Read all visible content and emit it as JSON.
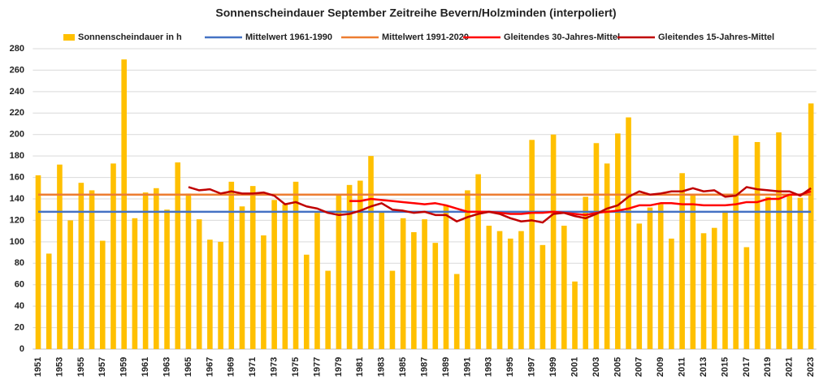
{
  "chart_data": {
    "type": "bar",
    "title": "Sonnenscheindauer September Zeitreihe Bevern/Holzminden (interpoliert)",
    "categories": [
      "1951",
      null,
      "1953",
      null,
      "1955",
      null,
      "1957",
      null,
      "1959",
      null,
      "1961",
      null,
      "1963",
      null,
      "1965",
      null,
      "1967",
      null,
      "1969",
      null,
      "1971",
      null,
      "1973",
      null,
      "1975",
      null,
      "1977",
      null,
      "1979",
      null,
      "1981",
      null,
      "1983",
      null,
      "1985",
      null,
      "1987",
      null,
      "1989",
      null,
      "1991",
      null,
      "1993",
      null,
      "1995",
      null,
      "1997",
      null,
      "1999",
      null,
      "2001",
      null,
      "2003",
      null,
      "2005",
      null,
      "2007",
      null,
      "2009",
      null,
      "2011",
      null,
      "2013",
      null,
      "2015",
      null,
      "2017",
      null,
      "2019",
      null,
      "2021",
      null,
      "2023"
    ],
    "series": [
      {
        "name": "Sonnenscheindauer in h",
        "type": "bar",
        "color": "#ffc000",
        "values": [
          162,
          89,
          172,
          120,
          155,
          148,
          101,
          173,
          270,
          122,
          146,
          150,
          130,
          174,
          145,
          121,
          102,
          100,
          156,
          133,
          152,
          106,
          139,
          135,
          156,
          88,
          127,
          73,
          144,
          153,
          157,
          180,
          128,
          73,
          122,
          109,
          121,
          99,
          134,
          70,
          148,
          163,
          115,
          110,
          103,
          110,
          195,
          97,
          200,
          115,
          63,
          142,
          192,
          173,
          201,
          216,
          117,
          132,
          135,
          103,
          164,
          144,
          108,
          113,
          129,
          199,
          95,
          193,
          142,
          202,
          144,
          141,
          229
        ]
      },
      {
        "name": "Mittelwert 1961-1990",
        "type": "line",
        "color": "#4472c4",
        "values": [
          128,
          128,
          128,
          128,
          128,
          128,
          128,
          128,
          128,
          128,
          128,
          128,
          128,
          128,
          128,
          128,
          128,
          128,
          128,
          128,
          128,
          128,
          128,
          128,
          128,
          128,
          128,
          128,
          128,
          128,
          128,
          128,
          128,
          128,
          128,
          128,
          128,
          128,
          128,
          128,
          128,
          128,
          128,
          128,
          128,
          128,
          128,
          128,
          128,
          128,
          128,
          128,
          128,
          128,
          128,
          128,
          128,
          128,
          128,
          128,
          128,
          128,
          128,
          128,
          128,
          128,
          128,
          128,
          128,
          128,
          128,
          128,
          128
        ]
      },
      {
        "name": "Mittelwert 1991-2020",
        "type": "line",
        "color": "#ed7d31",
        "values": [
          144,
          144,
          144,
          144,
          144,
          144,
          144,
          144,
          144,
          144,
          144,
          144,
          144,
          144,
          144,
          144,
          144,
          144,
          144,
          144,
          144,
          144,
          144,
          144,
          144,
          144,
          144,
          144,
          144,
          144,
          144,
          144,
          144,
          144,
          144,
          144,
          144,
          144,
          144,
          144,
          144,
          144,
          144,
          144,
          144,
          144,
          144,
          144,
          144,
          144,
          144,
          144,
          144,
          144,
          144,
          144,
          144,
          144,
          144,
          144,
          144,
          144,
          144,
          144,
          144,
          144,
          144,
          144,
          144,
          144,
          144,
          144,
          144
        ]
      },
      {
        "name": "Gleitendes 30-Jahres-Mittel",
        "type": "line",
        "color": "#ff0000",
        "values": [
          null,
          null,
          null,
          null,
          null,
          null,
          null,
          null,
          null,
          null,
          null,
          null,
          null,
          null,
          null,
          null,
          null,
          null,
          null,
          null,
          null,
          null,
          null,
          null,
          null,
          null,
          null,
          null,
          null,
          138,
          138,
          140,
          139,
          138,
          137,
          136,
          135,
          136,
          134,
          131,
          128,
          128,
          128,
          127,
          126,
          126,
          127,
          127,
          128,
          127,
          126,
          125,
          127,
          128,
          129,
          131,
          134,
          134,
          136,
          136,
          135,
          135,
          134,
          134,
          134,
          135,
          137,
          137,
          140,
          140,
          144,
          144,
          147
        ]
      },
      {
        "name": "Gleitendes 15-Jahres-Mittel",
        "type": "line",
        "color": "#c00000",
        "values": [
          null,
          null,
          null,
          null,
          null,
          null,
          null,
          null,
          null,
          null,
          null,
          null,
          null,
          null,
          151,
          148,
          149,
          145,
          147,
          145,
          145,
          146,
          143,
          135,
          137,
          133,
          131,
          127,
          125,
          126,
          129,
          133,
          136,
          130,
          129,
          127,
          128,
          125,
          125,
          119,
          123,
          126,
          128,
          126,
          122,
          119,
          120,
          118,
          126,
          127,
          124,
          122,
          126,
          131,
          134,
          142,
          147,
          144,
          145,
          147,
          147,
          150,
          147,
          148,
          142,
          143,
          151,
          149,
          148,
          147,
          147,
          143,
          150
        ]
      }
    ],
    "ylim": [
      0,
      280
    ],
    "yticks": [
      0,
      20,
      40,
      60,
      80,
      100,
      120,
      140,
      160,
      180,
      200,
      220,
      240,
      260,
      280
    ],
    "grid": true
  }
}
